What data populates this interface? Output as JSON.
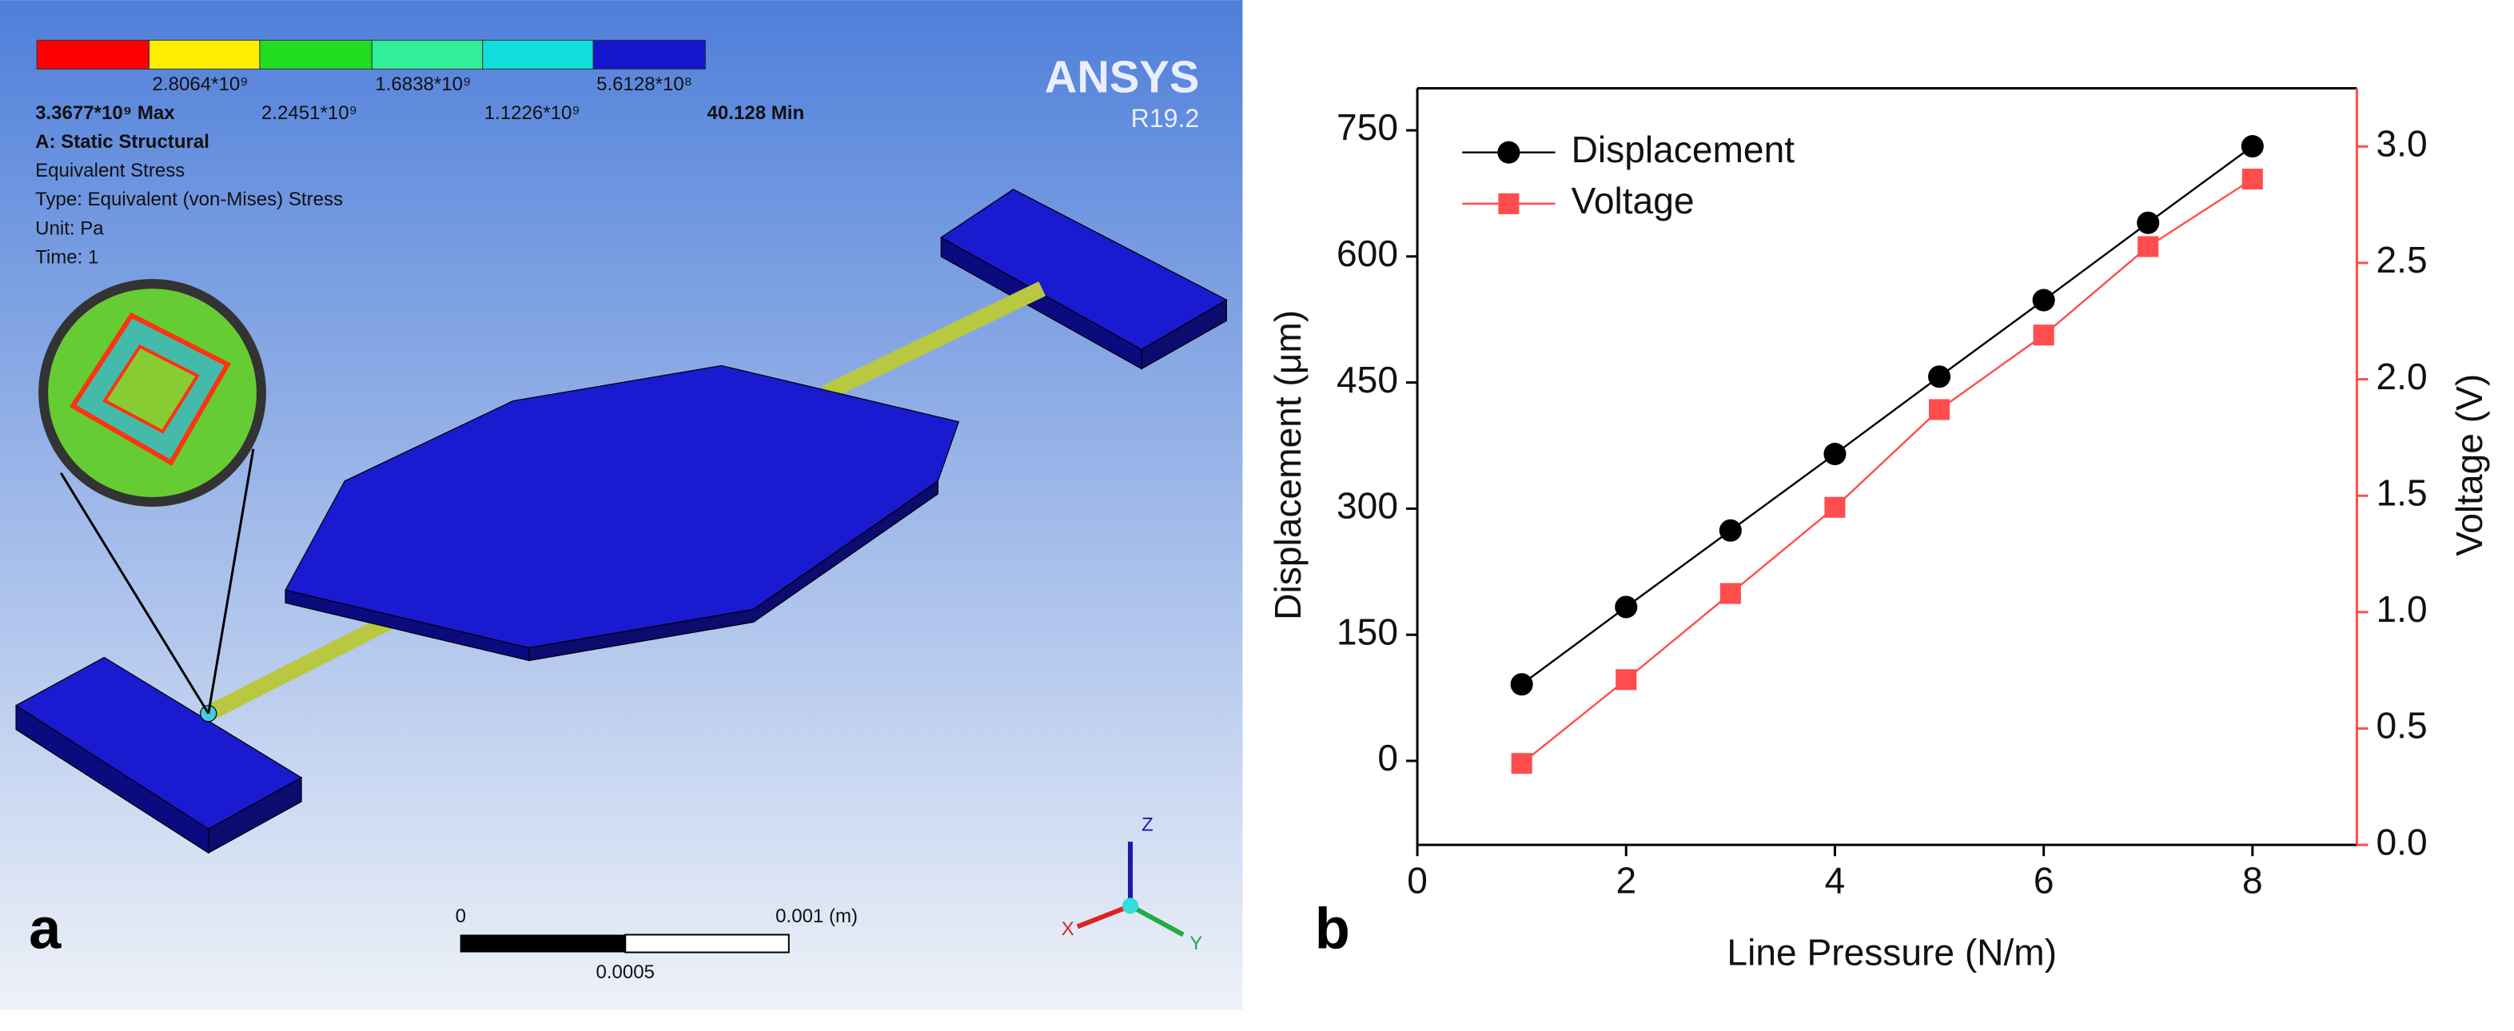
{
  "panel_a": {
    "label": "a",
    "legend_top": [
      "2.8064*10⁹",
      "1.6838*10⁹",
      "5.6128*10⁸"
    ],
    "legend_bottom": [
      "3.3677*10⁹ Max",
      "2.2451*10⁹",
      "1.1226*10⁹",
      "40.128 Min"
    ],
    "info": [
      "A: Static Structural",
      "Equivalent Stress",
      "Type: Equivalent (von-Mises) Stress",
      "Unit: Pa",
      "Time: 1"
    ],
    "brand": "ANSYS",
    "version": "R19.2",
    "scale_start": "0",
    "scale_end": "0.001 (m)",
    "scale_mid": "0.0005",
    "axes": [
      "Z",
      "X",
      "Y"
    ]
  },
  "chart_data": {
    "type": "line",
    "label": "b",
    "x_label": "Line Pressure (N/m)",
    "y_label": "Displacement (μm)",
    "y2_label": "Voltage (V)",
    "xlim": [
      0,
      9
    ],
    "xticks": [
      0,
      2,
      4,
      6,
      8
    ],
    "ylim": [
      -100,
      800
    ],
    "yticks": [
      0,
      150,
      300,
      450,
      600,
      750
    ],
    "y2lim": [
      0,
      3.25
    ],
    "y2ticks": [
      {
        "value": 0,
        "label": "0.0"
      },
      0.5,
      {
        "value": 1,
        "label": "1.0"
      },
      1.5,
      {
        "value": 2,
        "label": "2.0"
      },
      2.5,
      {
        "value": 3,
        "label": "3.0"
      }
    ],
    "legend": "upper left",
    "x": [
      1,
      2,
      3,
      4,
      5,
      6,
      7,
      8
    ],
    "series": [
      {
        "name": "Displacement",
        "color": "#000000",
        "marker": "circle",
        "values": [
          91,
          183,
          274,
          365,
          457,
          548,
          640,
          731
        ]
      },
      {
        "name": "Voltage",
        "color": "#ff4d4d",
        "marker": "square",
        "axis": "y2",
        "values": [
          0.35,
          0.71,
          1.08,
          1.45,
          1.87,
          2.19,
          2.57,
          2.86
        ]
      }
    ]
  }
}
